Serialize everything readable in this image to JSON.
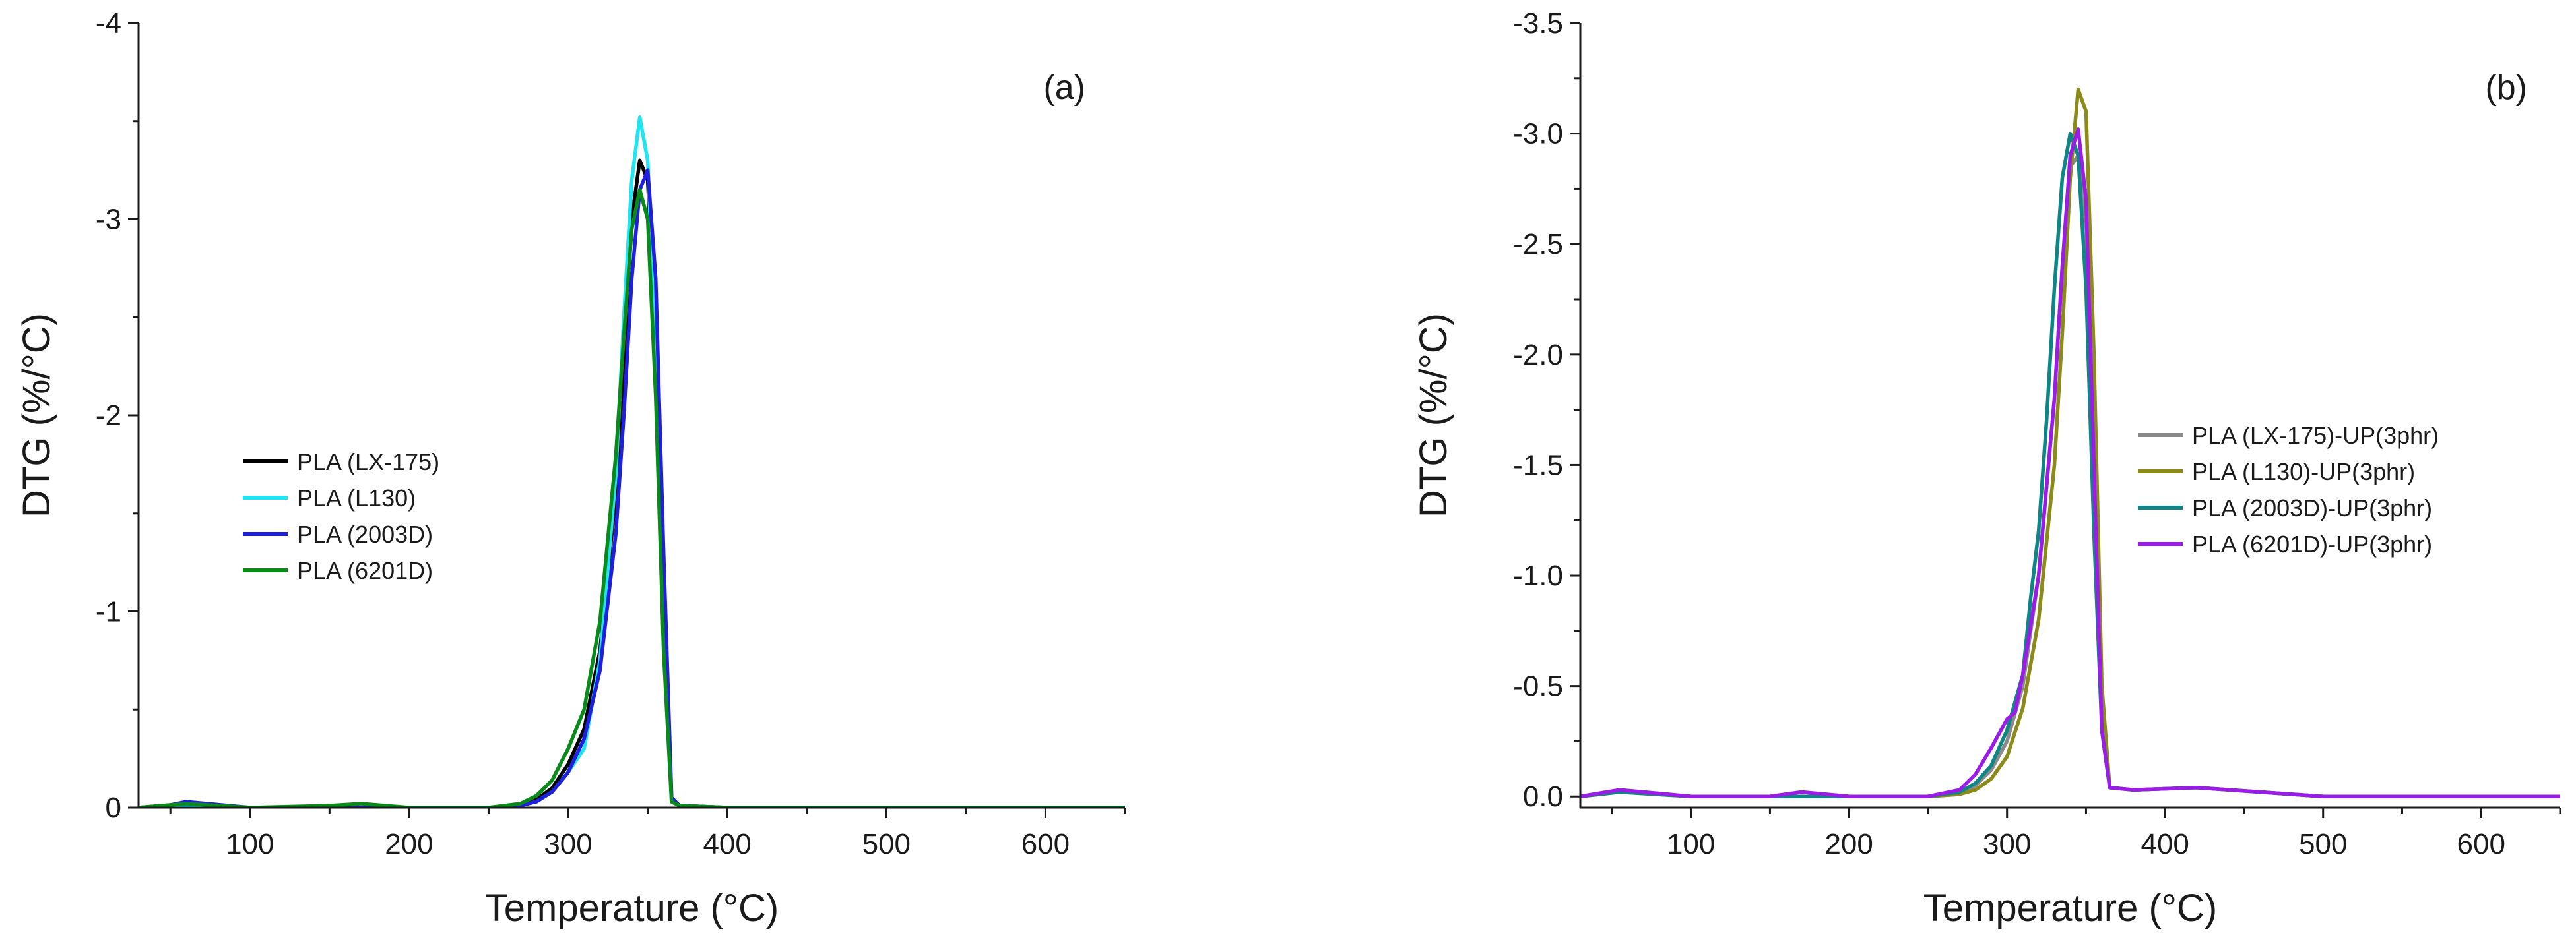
{
  "chart_data": [
    {
      "type": "line",
      "panel_label": "(a)",
      "xlabel": "Temperature (°C)",
      "ylabel": "DTG (%/°C)",
      "xlim": [
        30,
        650
      ],
      "ylim": [
        0,
        -4
      ],
      "y_reversed": true,
      "xticks": [
        100,
        200,
        300,
        400,
        500,
        600
      ],
      "xtick_labels": [
        "100",
        "200",
        "300",
        "400",
        "500",
        "600"
      ],
      "yticks": [
        0,
        -1,
        -2,
        -3,
        -4
      ],
      "ytick_labels": [
        "0",
        "-1",
        "-2",
        "-3",
        "-4"
      ],
      "grid": false,
      "legend_position": "center-left",
      "series": [
        {
          "name": "PLA (LX-175)",
          "color": "#000000",
          "x": [
            30,
            60,
            100,
            150,
            200,
            250,
            270,
            280,
            290,
            300,
            310,
            320,
            330,
            335,
            340,
            345,
            350,
            355,
            360,
            365,
            370,
            400,
            650
          ],
          "y": [
            0,
            -0.02,
            0,
            0,
            0,
            0,
            -0.01,
            -0.04,
            -0.1,
            -0.22,
            -0.4,
            -0.8,
            -1.6,
            -2.3,
            -3.0,
            -3.3,
            -3.2,
            -2.4,
            -1.0,
            -0.03,
            -0.01,
            0,
            0
          ]
        },
        {
          "name": "PLA (L130)",
          "color": "#22e3f0",
          "x": [
            30,
            60,
            100,
            150,
            175,
            200,
            250,
            270,
            280,
            290,
            300,
            310,
            320,
            330,
            335,
            340,
            345,
            350,
            355,
            360,
            365,
            370,
            400,
            650
          ],
          "y": [
            0,
            -0.01,
            0,
            0,
            0.02,
            0,
            0,
            -0.01,
            -0.03,
            -0.08,
            -0.18,
            -0.3,
            -0.75,
            -1.7,
            -2.5,
            -3.2,
            -3.52,
            -3.3,
            -2.3,
            -0.8,
            -0.03,
            -0.01,
            0,
            0
          ]
        },
        {
          "name": "PLA (2003D)",
          "color": "#1f1fe0",
          "x": [
            30,
            60,
            100,
            150,
            200,
            250,
            270,
            280,
            290,
            300,
            310,
            320,
            330,
            335,
            340,
            345,
            350,
            355,
            360,
            365,
            370,
            400,
            650
          ],
          "y": [
            0.02,
            -0.03,
            0,
            0,
            0,
            0,
            -0.01,
            -0.03,
            -0.08,
            -0.18,
            -0.35,
            -0.7,
            -1.4,
            -2.0,
            -2.7,
            -3.15,
            -3.25,
            -2.7,
            -1.3,
            -0.05,
            -0.01,
            0,
            0
          ]
        },
        {
          "name": "PLA (6201D)",
          "color": "#0b8a1c",
          "x": [
            30,
            60,
            100,
            150,
            170,
            200,
            250,
            270,
            280,
            290,
            300,
            310,
            320,
            330,
            335,
            340,
            345,
            350,
            355,
            360,
            365,
            370,
            400,
            650
          ],
          "y": [
            0,
            -0.02,
            0,
            -0.01,
            -0.02,
            0,
            0,
            -0.02,
            -0.06,
            -0.14,
            -0.3,
            -0.5,
            -0.95,
            -1.8,
            -2.4,
            -2.95,
            -3.15,
            -3.0,
            -2.1,
            -0.8,
            -0.03,
            -0.01,
            0,
            0
          ]
        }
      ]
    },
    {
      "type": "line",
      "panel_label": "(b)",
      "xlabel": "Temperature (°C)",
      "ylabel": "DTG (%/°C)",
      "xlim": [
        30,
        650
      ],
      "ylim": [
        0.05,
        -3.5
      ],
      "y_reversed": true,
      "xticks": [
        100,
        200,
        300,
        400,
        500,
        600
      ],
      "xtick_labels": [
        "100",
        "200",
        "300",
        "400",
        "500",
        "600"
      ],
      "yticks": [
        0,
        -0.5,
        -1,
        -1.5,
        -2,
        -2.5,
        -3,
        -3.5
      ],
      "ytick_labels": [
        "0.0",
        "-0.5",
        "-1.0",
        "-1.5",
        "-2.0",
        "-2.5",
        "-3.0",
        "-3.5"
      ],
      "grid": false,
      "legend_position": "center-right",
      "series": [
        {
          "name": "PLA (LX-175)-UP(3phr)",
          "color": "#8a8a8a",
          "x": [
            30,
            55,
            100,
            150,
            200,
            250,
            270,
            280,
            290,
            300,
            310,
            320,
            330,
            335,
            340,
            345,
            350,
            355,
            360,
            365,
            380,
            420,
            460,
            500,
            650
          ],
          "y": [
            0,
            -0.03,
            0,
            0,
            0,
            0,
            -0.01,
            -0.05,
            -0.12,
            -0.25,
            -0.5,
            -1.0,
            -1.8,
            -2.4,
            -2.85,
            -2.9,
            -2.6,
            -1.6,
            -0.3,
            -0.04,
            -0.03,
            -0.04,
            -0.02,
            0,
            0
          ]
        },
        {
          "name": "PLA (L130)-UP(3phr)",
          "color": "#8c8a1a",
          "x": [
            30,
            55,
            100,
            150,
            170,
            200,
            250,
            270,
            280,
            290,
            300,
            310,
            320,
            330,
            335,
            340,
            345,
            350,
            355,
            360,
            365,
            380,
            420,
            460,
            500,
            650
          ],
          "y": [
            0,
            -0.02,
            0,
            0,
            -0.02,
            0,
            0,
            -0.01,
            -0.03,
            -0.08,
            -0.18,
            -0.4,
            -0.8,
            -1.5,
            -2.1,
            -2.8,
            -3.2,
            -3.1,
            -2.0,
            -0.5,
            -0.04,
            -0.03,
            -0.04,
            -0.02,
            0,
            0
          ]
        },
        {
          "name": "PLA (2003D)-UP(3phr)",
          "color": "#0f8585",
          "x": [
            30,
            55,
            100,
            150,
            200,
            250,
            270,
            280,
            290,
            300,
            310,
            315,
            320,
            325,
            330,
            335,
            340,
            345,
            350,
            355,
            360,
            365,
            380,
            420,
            460,
            500,
            650
          ],
          "y": [
            0,
            -0.02,
            0,
            0,
            0,
            0,
            -0.02,
            -0.06,
            -0.14,
            -0.3,
            -0.55,
            -0.9,
            -1.2,
            -1.7,
            -2.3,
            -2.8,
            -3.0,
            -2.9,
            -2.3,
            -1.2,
            -0.3,
            -0.04,
            -0.03,
            -0.04,
            -0.02,
            0,
            0
          ]
        },
        {
          "name": "PLA (6201D)-UP(3phr)",
          "color": "#9a1de6",
          "x": [
            30,
            55,
            100,
            150,
            170,
            200,
            250,
            270,
            280,
            290,
            300,
            305,
            310,
            320,
            330,
            335,
            340,
            345,
            350,
            355,
            360,
            365,
            380,
            420,
            460,
            500,
            650
          ],
          "y": [
            0,
            -0.03,
            0,
            0,
            -0.02,
            0,
            0,
            -0.03,
            -0.1,
            -0.22,
            -0.35,
            -0.38,
            -0.55,
            -1.0,
            -1.8,
            -2.4,
            -2.9,
            -3.02,
            -2.7,
            -1.5,
            -0.3,
            -0.04,
            -0.03,
            -0.04,
            -0.02,
            0,
            0
          ]
        }
      ]
    }
  ]
}
